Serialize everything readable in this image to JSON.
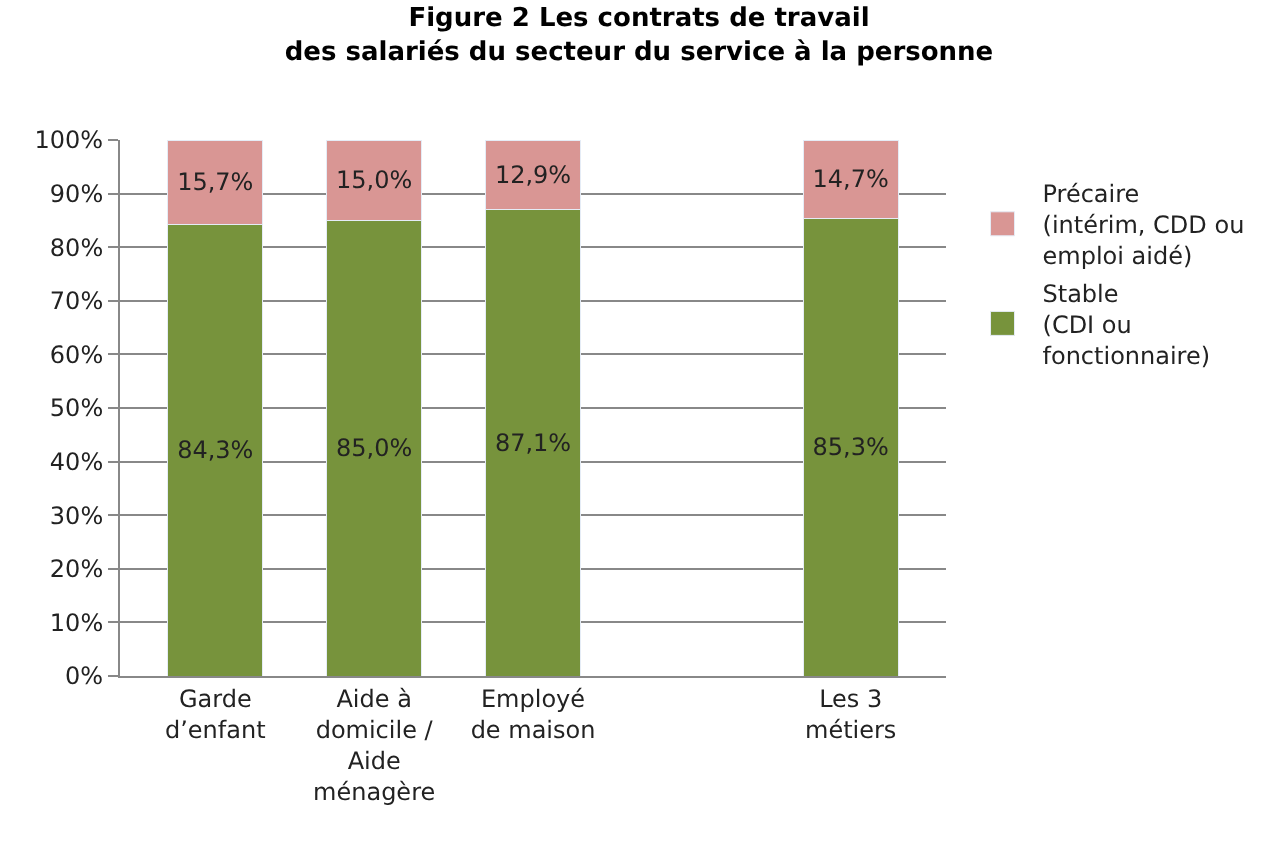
{
  "chart_data": {
    "type": "bar",
    "title": "Figure 2 Les contrats de travail\ndes salariés du secteur du service à la personne",
    "categories": [
      "Garde\nd’enfant",
      "Aide à\ndomicile /\nAide\nménagère",
      "Employé\nde maison",
      null,
      "Les 3\nmétiers"
    ],
    "stacked": true,
    "series": [
      {
        "name": "Stable\n(CDI ou\nfonctionnaire)",
        "color": "#77933c",
        "values": [
          84.3,
          85.0,
          87.1,
          null,
          85.3
        ],
        "value_labels": [
          "84,3%",
          "85,0%",
          "87,1%",
          null,
          "85,3%"
        ]
      },
      {
        "name": "Précaire\n(intérim, CDD ou\nemploi aidé)",
        "color": "#d99694",
        "values": [
          15.7,
          15.0,
          12.9,
          null,
          14.7
        ],
        "value_labels": [
          "15,7%",
          "15,0%",
          "12,9%",
          null,
          "14,7%"
        ]
      }
    ],
    "ylim": [
      0,
      100
    ],
    "yticks": [
      {
        "value": 0,
        "label": "0%"
      },
      {
        "value": 10,
        "label": "10%"
      },
      {
        "value": 20,
        "label": "20%"
      },
      {
        "value": 30,
        "label": "30%"
      },
      {
        "value": 40,
        "label": "40%"
      },
      {
        "value": 50,
        "label": "50%"
      },
      {
        "value": 60,
        "label": "60%"
      },
      {
        "value": 70,
        "label": "70%"
      },
      {
        "value": 80,
        "label": "80%"
      },
      {
        "value": 90,
        "label": "90%"
      },
      {
        "value": 100,
        "label": "100%"
      }
    ],
    "grid": "y",
    "legend": "right"
  }
}
